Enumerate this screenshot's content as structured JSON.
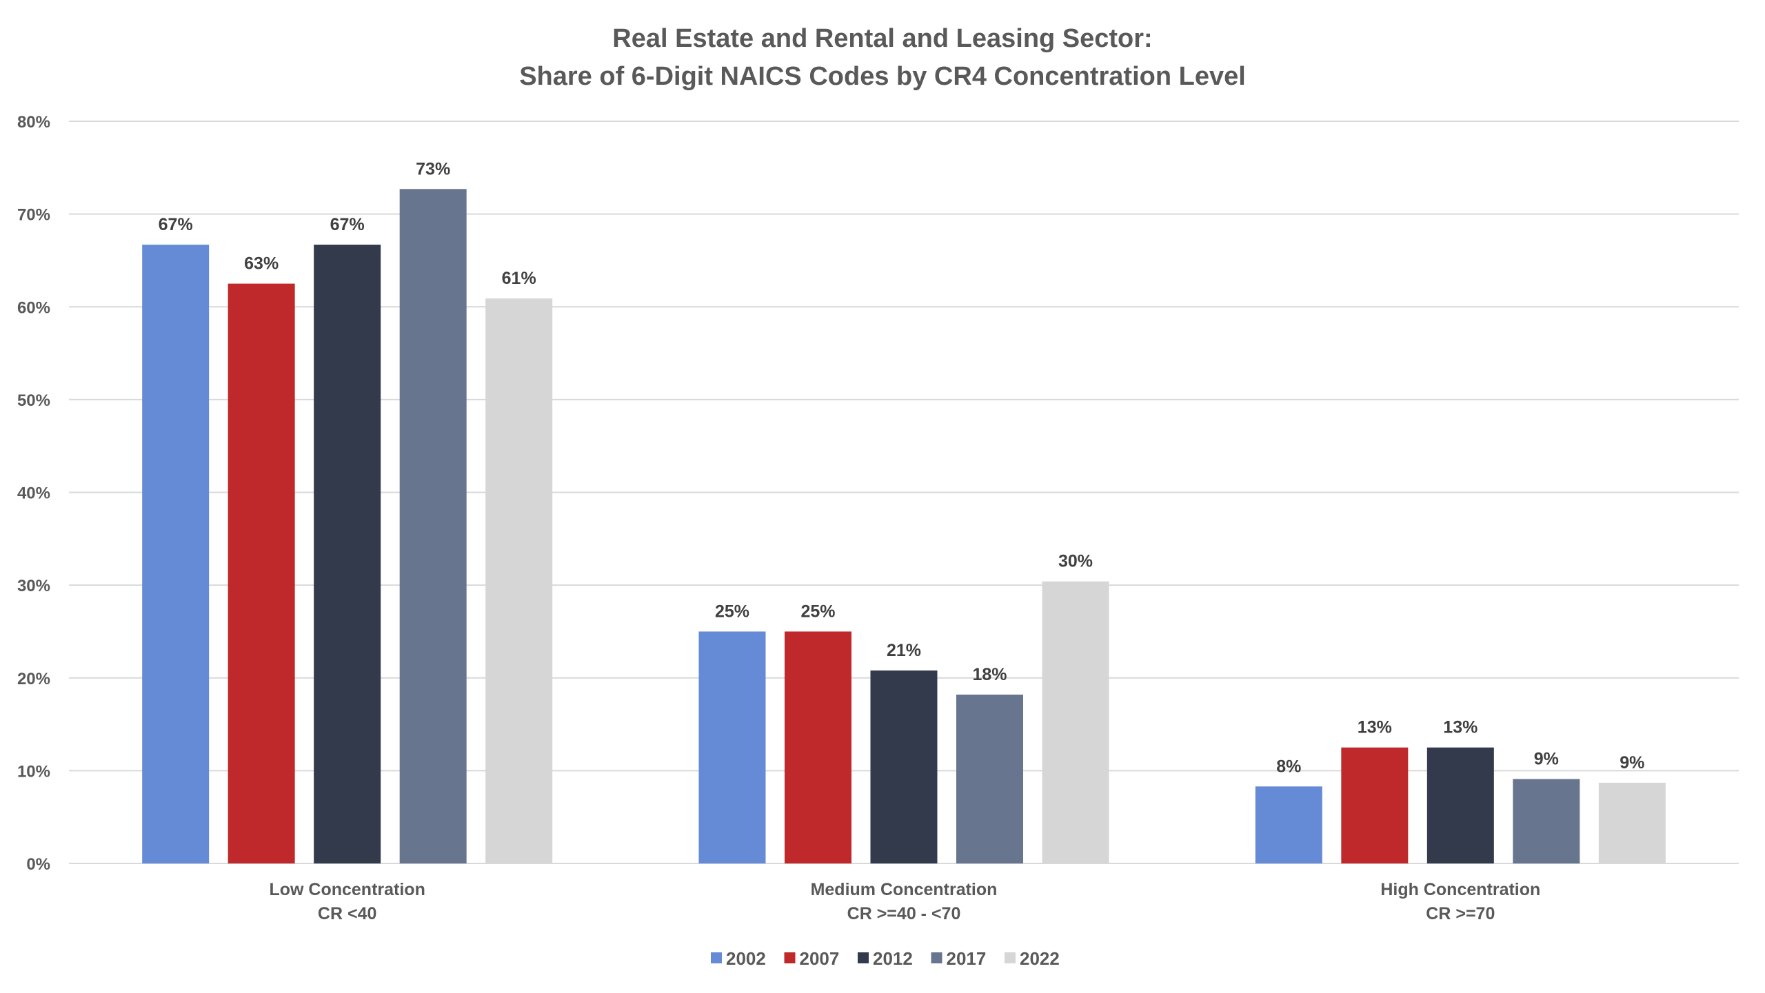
{
  "chart_data": {
    "type": "bar",
    "title": [
      "Real Estate and Rental and Leasing Sector:",
      "Share of 6-Digit NAICS Codes by CR4 Concentration Level"
    ],
    "xlabel": "",
    "ylabel": "",
    "ylim": [
      0,
      80
    ],
    "yticks": [
      0,
      10,
      20,
      30,
      40,
      50,
      60,
      70,
      80
    ],
    "ytick_labels": [
      "0%",
      "10%",
      "20%",
      "30%",
      "40%",
      "50%",
      "60%",
      "70%",
      "80%"
    ],
    "grid": true,
    "legend_position": "bottom",
    "categories": [
      {
        "line1": "Low Concentration",
        "line2": "CR <40"
      },
      {
        "line1": "Medium Concentration",
        "line2": "CR >=40 - <70"
      },
      {
        "line1": "High Concentration",
        "line2": "CR >=70"
      }
    ],
    "series": [
      {
        "name": "2002",
        "color": "#668BD6",
        "values": [
          66.7,
          25.0,
          8.3
        ],
        "labels": [
          "67%",
          "25%",
          "8%"
        ]
      },
      {
        "name": "2007",
        "color": "#C0292B",
        "values": [
          62.5,
          25.0,
          12.5
        ],
        "labels": [
          "63%",
          "25%",
          "13%"
        ]
      },
      {
        "name": "2012",
        "color": "#333A4C",
        "values": [
          66.7,
          20.8,
          12.5
        ],
        "labels": [
          "67%",
          "21%",
          "13%"
        ]
      },
      {
        "name": "2017",
        "color": "#68758F",
        "values": [
          72.7,
          18.2,
          9.1
        ],
        "labels": [
          "73%",
          "18%",
          "9%"
        ]
      },
      {
        "name": "2022",
        "color": "#D6D6D6",
        "values": [
          60.9,
          30.4,
          8.7
        ],
        "labels": [
          "61%",
          "30%",
          "9%"
        ]
      }
    ]
  }
}
